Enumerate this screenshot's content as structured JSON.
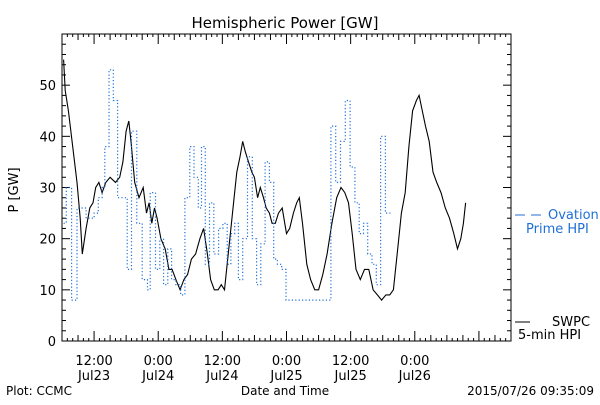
{
  "chart_data": {
    "type": "line",
    "title": "Hemispheric Power [GW]",
    "ylabel": "P [GW]",
    "xlabel": "Date and Time",
    "ylim": [
      0,
      60
    ],
    "yticks": [
      0,
      10,
      20,
      30,
      40,
      50
    ],
    "xlim_hours": [
      6,
      90
    ],
    "x_ticks": [
      {
        "hour": 12,
        "time": "12:00",
        "date": "Jul23"
      },
      {
        "hour": 24,
        "time": "0:00",
        "date": "Jul24"
      },
      {
        "hour": 36,
        "time": "12:00",
        "date": "Jul24"
      },
      {
        "hour": 48,
        "time": "0:00",
        "date": "Jul25"
      },
      {
        "hour": 60,
        "time": "12:00",
        "date": "Jul25"
      },
      {
        "hour": 72,
        "time": "0:00",
        "date": "Jul26"
      }
    ],
    "series": [
      {
        "name": "SWPC 5-min HPI",
        "color": "#000000",
        "style": "solid",
        "points": [
          [
            6.3,
            55
          ],
          [
            6.6,
            49
          ],
          [
            7.2,
            45
          ],
          [
            8.0,
            38
          ],
          [
            8.8,
            31
          ],
          [
            9.4,
            24
          ],
          [
            9.8,
            17
          ],
          [
            10.5,
            22
          ],
          [
            11.2,
            26
          ],
          [
            11.8,
            27
          ],
          [
            12.3,
            30
          ],
          [
            12.9,
            31
          ],
          [
            13.5,
            29
          ],
          [
            14.2,
            31
          ],
          [
            15.0,
            32
          ],
          [
            16.0,
            31
          ],
          [
            16.8,
            32
          ],
          [
            17.4,
            35
          ],
          [
            18.0,
            41
          ],
          [
            18.5,
            43
          ],
          [
            18.9,
            39
          ],
          [
            19.6,
            31
          ],
          [
            20.4,
            28
          ],
          [
            21.2,
            30
          ],
          [
            21.8,
            25
          ],
          [
            22.3,
            27
          ],
          [
            22.8,
            23
          ],
          [
            23.3,
            26
          ],
          [
            23.8,
            24
          ],
          [
            24.5,
            20
          ],
          [
            25.3,
            18
          ],
          [
            26.0,
            14
          ],
          [
            26.6,
            14
          ],
          [
            27.3,
            12
          ],
          [
            28.1,
            10
          ],
          [
            28.8,
            12
          ],
          [
            29.5,
            13
          ],
          [
            30.2,
            16
          ],
          [
            31.0,
            17
          ],
          [
            31.8,
            20
          ],
          [
            32.5,
            22
          ],
          [
            33.2,
            17
          ],
          [
            33.8,
            12
          ],
          [
            34.5,
            10
          ],
          [
            35.2,
            10
          ],
          [
            35.8,
            11
          ],
          [
            36.4,
            10
          ],
          [
            37.0,
            16
          ],
          [
            37.6,
            22
          ],
          [
            38.2,
            28
          ],
          [
            38.7,
            33
          ],
          [
            39.3,
            36
          ],
          [
            39.8,
            39
          ],
          [
            40.3,
            37
          ],
          [
            40.9,
            35
          ],
          [
            41.5,
            33
          ],
          [
            42.0,
            32
          ],
          [
            42.6,
            28
          ],
          [
            43.1,
            30
          ],
          [
            43.7,
            28
          ],
          [
            44.2,
            26
          ],
          [
            44.8,
            25
          ],
          [
            45.3,
            23
          ],
          [
            45.9,
            23
          ],
          [
            46.5,
            25
          ],
          [
            47.2,
            26
          ],
          [
            48.0,
            21
          ],
          [
            48.6,
            22
          ],
          [
            49.3,
            25
          ],
          [
            49.9,
            27
          ],
          [
            50.4,
            28
          ],
          [
            51.0,
            23
          ],
          [
            51.8,
            15
          ],
          [
            52.5,
            12
          ],
          [
            53.3,
            10
          ],
          [
            54.0,
            10
          ],
          [
            54.8,
            13
          ],
          [
            55.6,
            17
          ],
          [
            56.5,
            23
          ],
          [
            57.4,
            28
          ],
          [
            58.2,
            30
          ],
          [
            58.9,
            29
          ],
          [
            59.6,
            27
          ],
          [
            60.3,
            21
          ],
          [
            61.0,
            14
          ],
          [
            61.8,
            12
          ],
          [
            62.6,
            14
          ],
          [
            63.4,
            14
          ],
          [
            64.2,
            10
          ],
          [
            65.0,
            9
          ],
          [
            65.8,
            8
          ],
          [
            66.6,
            9
          ],
          [
            67.3,
            9
          ],
          [
            68.0,
            10
          ],
          [
            68.8,
            18
          ],
          [
            69.5,
            25
          ],
          [
            70.2,
            29
          ],
          [
            70.9,
            38
          ],
          [
            71.6,
            45
          ],
          [
            72.3,
            47
          ],
          [
            72.8,
            48
          ],
          [
            73.4,
            45
          ],
          [
            74.0,
            42
          ],
          [
            74.7,
            39
          ],
          [
            75.4,
            33
          ],
          [
            76.1,
            31
          ],
          [
            76.9,
            29
          ],
          [
            77.7,
            26
          ],
          [
            78.5,
            24
          ],
          [
            79.3,
            21
          ],
          [
            80.0,
            18
          ],
          [
            80.6,
            20
          ],
          [
            81.1,
            23
          ],
          [
            81.5,
            27
          ]
        ]
      },
      {
        "name": "Ovation Prime HPI",
        "color": "#1f6fd6",
        "style": "dotted-step",
        "points": [
          [
            6.3,
            23
          ],
          [
            6.8,
            30
          ],
          [
            7.8,
            8
          ],
          [
            8.8,
            26
          ],
          [
            10.5,
            24
          ],
          [
            12.0,
            25
          ],
          [
            12.8,
            28
          ],
          [
            13.5,
            30
          ],
          [
            14.0,
            38
          ],
          [
            14.8,
            53
          ],
          [
            15.6,
            47
          ],
          [
            16.4,
            28
          ],
          [
            17.2,
            28
          ],
          [
            18.2,
            14
          ],
          [
            19.0,
            41
          ],
          [
            20.0,
            23
          ],
          [
            21.0,
            12
          ],
          [
            22.0,
            10
          ],
          [
            22.5,
            29
          ],
          [
            23.5,
            14
          ],
          [
            24.3,
            20
          ],
          [
            25.0,
            11
          ],
          [
            25.8,
            18
          ],
          [
            26.5,
            12
          ],
          [
            27.3,
            11
          ],
          [
            28.2,
            9
          ],
          [
            29.0,
            28
          ],
          [
            29.9,
            38
          ],
          [
            30.7,
            32
          ],
          [
            31.5,
            26
          ],
          [
            32.1,
            38
          ],
          [
            32.8,
            15
          ],
          [
            33.6,
            27
          ],
          [
            34.4,
            17
          ],
          [
            35.3,
            22
          ],
          [
            36.1,
            23
          ],
          [
            36.9,
            15
          ],
          [
            37.6,
            21
          ],
          [
            38.3,
            23
          ],
          [
            39.0,
            12
          ],
          [
            39.8,
            20
          ],
          [
            40.7,
            36
          ],
          [
            41.6,
            20
          ],
          [
            42.4,
            11
          ],
          [
            43.2,
            19
          ],
          [
            44.0,
            35
          ],
          [
            44.8,
            31
          ],
          [
            45.6,
            16
          ],
          [
            46.3,
            15
          ],
          [
            47.1,
            14
          ],
          [
            47.9,
            8
          ],
          [
            48.8,
            8
          ],
          [
            49.7,
            8
          ],
          [
            50.6,
            8
          ],
          [
            51.4,
            8
          ],
          [
            52.0,
            8
          ],
          [
            53.5,
            8
          ],
          [
            54.4,
            8
          ],
          [
            55.2,
            8
          ],
          [
            56.3,
            42
          ],
          [
            57.2,
            31
          ],
          [
            58.1,
            39
          ],
          [
            59.0,
            47
          ],
          [
            59.9,
            34
          ],
          [
            60.8,
            27
          ],
          [
            61.6,
            21
          ],
          [
            62.4,
            23
          ],
          [
            63.2,
            17
          ],
          [
            64.0,
            15
          ],
          [
            64.8,
            11
          ],
          [
            65.6,
            40
          ],
          [
            66.5,
            25
          ]
        ]
      }
    ],
    "legend": [
      {
        "label": "Ovation",
        "label2": "Prime HPI",
        "color": "#1f6fd6",
        "style": "dashed"
      },
      {
        "label": "SWPC",
        "label2": "5-min HPI",
        "color": "#000000",
        "style": "solid"
      }
    ],
    "footer": {
      "left": "Plot: CCMC",
      "center": "Date and Time",
      "right": "2015/07/26 09:35:09"
    }
  }
}
